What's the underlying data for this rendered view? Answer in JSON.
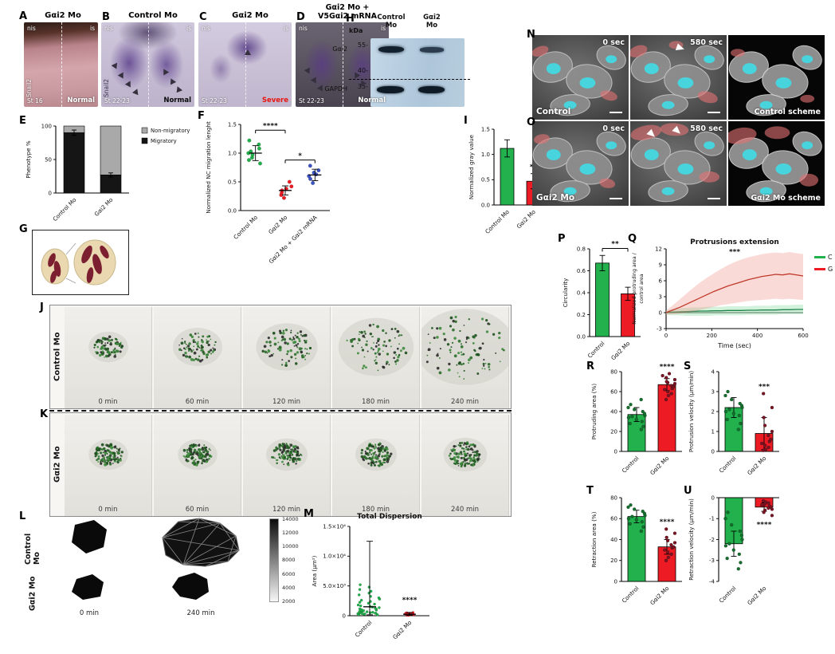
{
  "colors": {
    "green": "#22b14c",
    "red": "#ed1c24",
    "dark_green": "#14702e",
    "dark_red": "#7a1423",
    "blue": "#3a52c4",
    "gray": "#a9a9a9",
    "black": "#151515",
    "purple": "#7a5fa8",
    "cyan": "#45d8e2",
    "protrusion_red": "#e57373"
  },
  "panels": {
    "A": {
      "letter": "A",
      "title": "Gαi2 Mo",
      "top_left": "nis",
      "top_right": "is",
      "side_label": "Snail2",
      "stage": "St 16",
      "status": "Normal"
    },
    "B": {
      "letter": "B",
      "title": "Control Mo",
      "top_left": "nis",
      "top_right": "is",
      "side_label": "Snail2",
      "stage": "St 22-23",
      "status": "Normal"
    },
    "C": {
      "letter": "C",
      "title": "Gαi2 Mo",
      "top_left": "nis",
      "top_right": "is",
      "stage": "St 22-23",
      "status": "Severe"
    },
    "D": {
      "letter": "D",
      "title_line1": "Gαi2 Mo +",
      "title_line2": "V5Gαi2 mRNA",
      "top_left": "nis",
      "top_right": "is",
      "stage": "St 22-23",
      "status": "Normal"
    },
    "E": {
      "letter": "E"
    },
    "F": {
      "letter": "F"
    },
    "G": {
      "letter": "G"
    },
    "H": {
      "letter": "H",
      "kda": "kDa",
      "markers": [
        "55-",
        "40-",
        "35-"
      ],
      "col1_line1": "Control",
      "col1_line2": "Mo",
      "col2_line1": "Gαi2",
      "col2_line2": "Mo",
      "band1": "Gαi2",
      "band2": "GAPDH"
    },
    "I": {
      "letter": "I"
    },
    "J": {
      "letter": "J",
      "row_label": "Control Mo",
      "times": [
        "0 min",
        "60 min",
        "120 min",
        "180 min",
        "240 min"
      ]
    },
    "K": {
      "letter": "K",
      "row_label": "Gαi2 Mo",
      "times": [
        "0 min",
        "60 min",
        "120 min",
        "180 min",
        "240 min"
      ]
    },
    "L": {
      "letter": "L",
      "rows": [
        "Control Mo",
        "Gαi2 Mo"
      ],
      "cols": [
        "0 min",
        "240 min"
      ],
      "colorbar_ticks": [
        "14000",
        "12000",
        "10000",
        "8000",
        "6000",
        "4000",
        "2000"
      ]
    },
    "M": {
      "letter": "M"
    },
    "N": {
      "letter": "N",
      "time0": "0 sec",
      "time1": "580 sec",
      "label": "Control",
      "scheme_label": "Control scheme"
    },
    "O": {
      "letter": "O",
      "time0": "0 sec",
      "time1": "580 sec",
      "label": "Gαi2 Mo",
      "scheme_label": "Gαi2 Mo scheme"
    },
    "P": {
      "letter": "P"
    },
    "Q": {
      "letter": "Q",
      "legend": [
        {
          "label": "C",
          "color": "#22b14c"
        },
        {
          "label": "G",
          "color": "#ed1c24"
        }
      ]
    },
    "R": {
      "letter": "R"
    },
    "S": {
      "letter": "S"
    },
    "T": {
      "letter": "T"
    },
    "U": {
      "letter": "U"
    }
  },
  "chart_data": {
    "E": {
      "type": "stacked-bar",
      "ylabel": "Phenotype %",
      "ylim": [
        0,
        100
      ],
      "yticks": [
        0,
        50,
        100
      ],
      "categories": [
        "Control Mo",
        "Gαi2 Mo"
      ],
      "series": [
        {
          "name": "Migratory",
          "color": "#151515",
          "values": [
            90,
            27
          ]
        },
        {
          "name": "Non-migratory",
          "color": "#a9a9a9",
          "values": [
            10,
            73
          ]
        }
      ],
      "errors": [
        4,
        3
      ],
      "legend_order": [
        "Non-migratory",
        "Migratory"
      ]
    },
    "F": {
      "type": "scatter",
      "ylabel": "Normalized NC migration lenght",
      "ylim": [
        0,
        1.5
      ],
      "yticks": [
        0,
        0.5,
        1,
        1.5
      ],
      "ytick_labels": [
        "0.0",
        "0.5",
        "1.0",
        "1.5"
      ],
      "groups": [
        {
          "label": "Control Mo",
          "color": "#22b14c",
          "mean": 1.0,
          "err": 0.13,
          "values": [
            0.82,
            0.88,
            0.92,
            0.97,
            1.0,
            1.03,
            1.08,
            1.15,
            1.22
          ]
        },
        {
          "label": "Gαi2 Mo",
          "color": "#ed1c24",
          "mean": 0.35,
          "err": 0.08,
          "values": [
            0.22,
            0.27,
            0.31,
            0.35,
            0.38,
            0.42,
            0.5
          ]
        },
        {
          "label": "Gαi2 Mo + Gαi2 mRNA",
          "color": "#3a52c4",
          "mean": 0.62,
          "err": 0.1,
          "values": [
            0.48,
            0.55,
            0.6,
            0.63,
            0.66,
            0.7,
            0.78
          ]
        }
      ],
      "sig": [
        {
          "from": 0,
          "to": 1,
          "v": 1.4,
          "label": "****"
        },
        {
          "from": 1,
          "to": 2,
          "v": 0.88,
          "label": "*"
        }
      ]
    },
    "I": {
      "type": "bar",
      "ylabel": "Normalized gray value",
      "ylim": [
        0,
        1.5
      ],
      "yticks": [
        0,
        0.5,
        1,
        1.5
      ],
      "ytick_labels": [
        "0.0",
        "0.5",
        "1.0",
        "1.5"
      ],
      "categories": [
        "Control Mo",
        "Gαi2 Mo"
      ],
      "values": [
        1.12,
        0.47
      ],
      "errors": [
        0.17,
        0.15
      ],
      "colors": [
        "#22b14c",
        "#ed1c24"
      ],
      "sig": "**"
    },
    "M": {
      "type": "scatter",
      "title": "Total Dispersion",
      "ylabel": "Area (μm²)",
      "ylim": [
        0,
        15000
      ],
      "yticks": [
        0,
        5000,
        10000,
        15000
      ],
      "ytick_labels": [
        "0",
        "5.0×10³",
        "1.0×10⁴",
        "1.5×10⁴"
      ],
      "groups": [
        {
          "label": "Control",
          "color": "#22b14c",
          "median": 1500,
          "whisker": [
            150,
            12500
          ],
          "values": [
            150,
            200,
            250,
            300,
            330,
            360,
            400,
            430,
            460,
            500,
            540,
            580,
            620,
            660,
            700,
            750,
            800,
            850,
            900,
            950,
            1000,
            1080,
            1150,
            1250,
            1350,
            1450,
            1550,
            1650,
            1800,
            1950,
            2100,
            2250,
            2400,
            2600,
            2800,
            3000,
            3250,
            3500,
            3800,
            4100,
            4400,
            4800,
            5200
          ]
        },
        {
          "label": "Gαi2 Mo",
          "color": "#ed1c24",
          "median": 250,
          "whisker": [
            60,
            550
          ],
          "values": [
            60,
            90,
            110,
            130,
            150,
            170,
            190,
            210,
            230,
            250,
            270,
            290,
            310,
            330,
            360,
            390,
            430,
            470,
            520
          ]
        }
      ],
      "sig": {
        "label": "****",
        "group": 1,
        "v": 2300
      }
    },
    "P": {
      "type": "bar",
      "ylabel": "Circularity",
      "ylim": [
        0,
        0.8
      ],
      "yticks": [
        0,
        0.2,
        0.4,
        0.6,
        0.8
      ],
      "ytick_labels": [
        "0.0",
        "0.2",
        "0.4",
        "0.6",
        "0.8"
      ],
      "categories": [
        "Control",
        "Gαi2 Mo"
      ],
      "values": [
        0.67,
        0.39
      ],
      "errors": [
        0.07,
        0.06
      ],
      "colors": [
        "#22b14c",
        "#ed1c24"
      ],
      "sig": "**",
      "bracket": true
    },
    "Q": {
      "type": "line",
      "title": "Protrusions extension",
      "xlabel": "Time (sec)",
      "ylabel_lines": [
        "Normalized protruding area /",
        "control area"
      ],
      "xlim": [
        0,
        600
      ],
      "xticks": [
        0,
        200,
        400,
        600
      ],
      "ylim": [
        -3,
        12
      ],
      "yticks": [
        -3,
        0,
        3,
        6,
        9,
        12
      ],
      "sig": {
        "label": "***",
        "x": 300,
        "v": 11
      },
      "series": [
        {
          "name": "C",
          "color": "#1e8449",
          "band": "#7fd99a",
          "x": [
            0,
            30,
            60,
            90,
            120,
            150,
            180,
            210,
            240,
            270,
            300,
            330,
            360,
            390,
            420,
            450,
            480,
            510,
            540,
            570,
            600
          ],
          "y": [
            0,
            0.1,
            0.15,
            0.2,
            0.25,
            0.3,
            0.3,
            0.35,
            0.35,
            0.4,
            0.4,
            0.4,
            0.45,
            0.45,
            0.5,
            0.5,
            0.5,
            0.55,
            0.55,
            0.6,
            0.6
          ],
          "upper": [
            0.4,
            0.7,
            0.8,
            0.9,
            1,
            1,
            1.1,
            1.1,
            1.1,
            1.2,
            1.2,
            1.2,
            1.2,
            1.3,
            1.3,
            1.3,
            1.4,
            1.4,
            1.4,
            1.5,
            1.5
          ],
          "lower": [
            -0.4,
            -0.5,
            -0.5,
            -0.6,
            -0.6,
            -0.6,
            -0.6,
            -0.5,
            -0.5,
            -0.5,
            -0.5,
            -0.5,
            -0.4,
            -0.4,
            -0.4,
            -0.4,
            -0.4,
            -0.3,
            -0.3,
            -0.3,
            -0.3
          ]
        },
        {
          "name": "G",
          "color": "#c0392b",
          "band": "#f1948a",
          "x": [
            0,
            30,
            60,
            90,
            120,
            150,
            180,
            210,
            240,
            270,
            300,
            330,
            360,
            390,
            420,
            450,
            480,
            510,
            540,
            570,
            600
          ],
          "y": [
            0,
            0.5,
            1,
            1.6,
            2.2,
            2.8,
            3.4,
            4,
            4.5,
            5,
            5.4,
            5.8,
            6.2,
            6.5,
            6.8,
            7,
            7.2,
            7.1,
            7.3,
            7.1,
            6.9
          ],
          "upper": [
            0.4,
            1.4,
            2.5,
            3.6,
            4.7,
            5.7,
            6.6,
            7.4,
            8.2,
            8.9,
            9.5,
            10,
            10.4,
            10.7,
            11,
            11.2,
            11.3,
            11.2,
            11.4,
            11.2,
            11
          ],
          "lower": [
            -0.4,
            -0.3,
            -0.2,
            0,
            0.2,
            0.5,
            0.8,
            1.1,
            1.4,
            1.6,
            1.8,
            2,
            2.2,
            2.3,
            2.4,
            2.5,
            2.6,
            2.5,
            2.6,
            2.5,
            2.4
          ]
        }
      ]
    },
    "R": {
      "type": "bar-scatter",
      "ylabel": "Protruding area (%)",
      "ylim": [
        0,
        80
      ],
      "yticks": [
        0,
        20,
        40,
        60,
        80
      ],
      "categories": [
        "Control",
        "Gαi2 Mo"
      ],
      "values": [
        37,
        67
      ],
      "errors": [
        7,
        6
      ],
      "colors": [
        "#22b14c",
        "#ed1c24"
      ],
      "dot_colors": [
        "#14702e",
        "#7a1423"
      ],
      "points": [
        [
          22,
          25,
          28,
          30,
          32,
          34,
          35,
          36,
          38,
          40,
          42,
          44,
          47,
          52
        ],
        [
          52,
          56,
          58,
          60,
          62,
          63,
          65,
          66,
          68,
          69,
          70,
          72,
          74,
          76,
          78
        ]
      ],
      "sig": "****"
    },
    "S": {
      "type": "bar-scatter",
      "ylabel": "Protrusion velocity (μm/min)",
      "ylim": [
        0,
        4
      ],
      "yticks": [
        0,
        1,
        2,
        3,
        4
      ],
      "categories": [
        "Control",
        "Gαi2 Mo"
      ],
      "values": [
        2.2,
        0.9
      ],
      "errors": [
        0.5,
        0.8
      ],
      "colors": [
        "#22b14c",
        "#ed1c24"
      ],
      "dot_colors": [
        "#14702e",
        "#7a1423"
      ],
      "points": [
        [
          1.1,
          1.4,
          1.6,
          1.8,
          1.9,
          2.0,
          2.1,
          2.2,
          2.3,
          2.4,
          2.6,
          2.8,
          3.0
        ],
        [
          0.05,
          0.1,
          0.2,
          0.3,
          0.4,
          0.5,
          0.6,
          0.8,
          1.0,
          1.3,
          1.7,
          2.2,
          2.9
        ]
      ],
      "sig": "***"
    },
    "T": {
      "type": "bar-scatter",
      "ylabel": "Retraction area (%)",
      "ylim": [
        0,
        80
      ],
      "yticks": [
        0,
        20,
        40,
        60,
        80
      ],
      "categories": [
        "Control",
        "Gαi2 Mo"
      ],
      "values": [
        62,
        33
      ],
      "errors": [
        6,
        7
      ],
      "colors": [
        "#22b14c",
        "#ed1c24"
      ],
      "dot_colors": [
        "#14702e",
        "#7a1423"
      ],
      "points": [
        [
          48,
          52,
          55,
          57,
          59,
          60,
          62,
          63,
          65,
          67,
          69,
          71,
          73
        ],
        [
          20,
          23,
          26,
          28,
          30,
          32,
          33,
          35,
          37,
          39,
          42,
          46,
          50
        ]
      ],
      "sig": "****"
    },
    "U": {
      "type": "bar-scatter",
      "ylabel": "Retraction velocity (μm/min)",
      "ylim": [
        -4,
        0
      ],
      "yticks": [
        0,
        -1,
        -2,
        -3,
        -4
      ],
      "categories": [
        "Control",
        "Gαi2 Mo"
      ],
      "values": [
        -2.2,
        -0.45
      ],
      "errors": [
        0.6,
        0.2
      ],
      "colors": [
        "#22b14c",
        "#ed1c24"
      ],
      "dot_colors": [
        "#14702e",
        "#7a1423"
      ],
      "points": [
        [
          -3.4,
          -3.1,
          -2.9,
          -2.7,
          -2.5,
          -2.3,
          -2.2,
          -2.0,
          -1.8,
          -1.6,
          -1.3,
          -1.0,
          -0.7
        ],
        [
          -0.15,
          -0.2,
          -0.25,
          -0.3,
          -0.35,
          -0.4,
          -0.45,
          -0.5,
          -0.55,
          -0.6,
          -0.7,
          -0.85
        ]
      ],
      "sig": "****"
    }
  }
}
